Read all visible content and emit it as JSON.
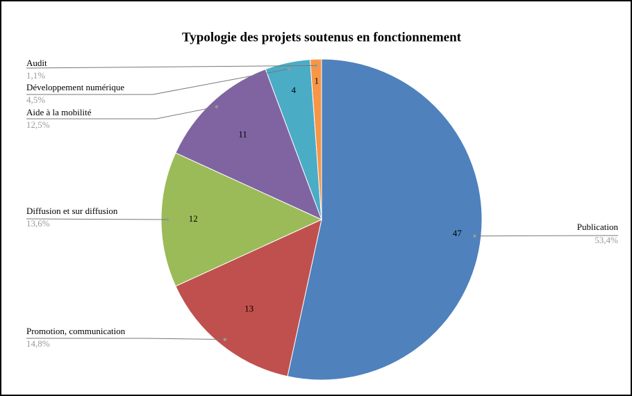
{
  "chart_data": {
    "type": "pie",
    "title": "Typologie des projets soutenus en fonctionnement",
    "categories": [
      "Publication",
      "Promotion, communication",
      "Diffusion et sur diffusion",
      "Aide à la mobilité",
      "Développement numérique",
      "Audit"
    ],
    "values": [
      47,
      13,
      12,
      11,
      4,
      1
    ],
    "percent_labels": [
      "53,4%",
      "14,8%",
      "13,6%",
      "12,5%",
      "4,5%",
      "1,1%"
    ],
    "colors": [
      "#4f81bd",
      "#c0504d",
      "#9bbb59",
      "#8064a2",
      "#4bacc6",
      "#f79646"
    ]
  }
}
